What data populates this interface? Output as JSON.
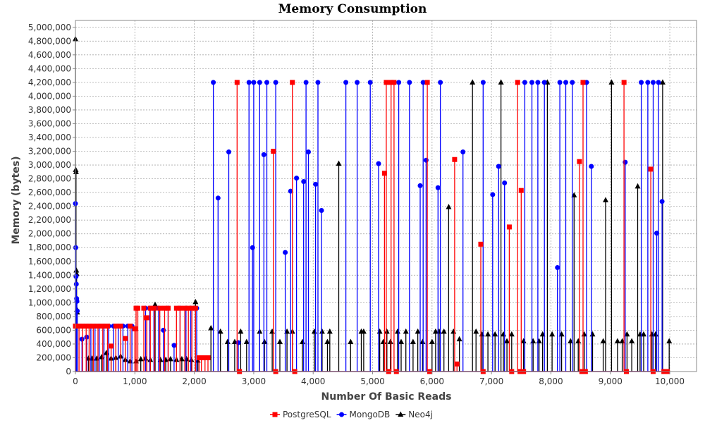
{
  "chart_data": {
    "type": "line",
    "title": "Memory Consumption",
    "xlabel": "Number Of Basic Reads",
    "ylabel": "Memory (bytes)",
    "xlim": [
      0,
      10450
    ],
    "ylim": [
      0,
      5100000
    ],
    "x_ticks": [
      0,
      1000,
      2000,
      3000,
      4000,
      5000,
      6000,
      7000,
      8000,
      9000,
      10000
    ],
    "x_tick_labels": [
      "0",
      "1,000",
      "2,000",
      "3,000",
      "4,000",
      "5,000",
      "6,000",
      "7,000",
      "8,000",
      "9,000",
      "10,000"
    ],
    "y_ticks": [
      0,
      200000,
      400000,
      600000,
      800000,
      1000000,
      1200000,
      1400000,
      1600000,
      1800000,
      2000000,
      2200000,
      2400000,
      2600000,
      2800000,
      3000000,
      3200000,
      3400000,
      3600000,
      3800000,
      4000000,
      4200000,
      4400000,
      4600000,
      4800000,
      5000000
    ],
    "y_tick_labels": [
      "0",
      "200,000",
      "400,000",
      "600,000",
      "800,000",
      "1,000,000",
      "1,200,000",
      "1,400,000",
      "1,600,000",
      "1,800,000",
      "2,000,000",
      "2,200,000",
      "2,400,000",
      "2,600,000",
      "2,800,000",
      "3,000,000",
      "3,200,000",
      "3,400,000",
      "3,600,000",
      "3,800,000",
      "4,000,000",
      "4,200,000",
      "4,400,000",
      "4,600,000",
      "4,800,000",
      "5,000,000"
    ],
    "grid": true,
    "legend_position": "bottom-center",
    "series": [
      {
        "name": "PostgreSQL",
        "color": "#ff0000",
        "marker": "square",
        "x": [
          0,
          60,
          120,
          180,
          230,
          300,
          380,
          460,
          540,
          600,
          680,
          760,
          840,
          920,
          1000,
          1020,
          1050,
          1150,
          1200,
          1260,
          1330,
          1420,
          1500,
          1560,
          1700,
          1760,
          1840,
          1900,
          1960,
          2020,
          2080,
          2120,
          2180,
          2230,
          2720,
          2760,
          3330,
          3370,
          3650,
          3690,
          5200,
          5230,
          5270,
          5310,
          5360,
          5400,
          5920,
          5960,
          6380,
          6420,
          6820,
          6860,
          7300,
          7340,
          7440,
          7480,
          7500,
          7540,
          8480,
          8520,
          8540,
          8580,
          9230,
          9270,
          9680,
          9720,
          9900,
          9960
        ],
        "y": [
          660000,
          660000,
          660000,
          660000,
          660000,
          660000,
          660000,
          660000,
          660000,
          370000,
          660000,
          660000,
          480000,
          660000,
          620000,
          920000,
          920000,
          920000,
          780000,
          920000,
          920000,
          920000,
          920000,
          920000,
          920000,
          920000,
          920000,
          920000,
          920000,
          920000,
          200000,
          200000,
          200000,
          200000,
          4200000,
          0,
          3200000,
          0,
          4200000,
          0,
          2880000,
          4200000,
          0,
          4200000,
          4200000,
          0,
          4200000,
          0,
          3080000,
          110000,
          1850000,
          0,
          2100000,
          0,
          4200000,
          0,
          2630000,
          0,
          3050000,
          0,
          4200000,
          0,
          4200000,
          0,
          2940000,
          0,
          0,
          0
        ]
      },
      {
        "name": "MongoDB",
        "color": "#0000ff",
        "marker": "circle",
        "x": [
          0,
          5,
          10,
          15,
          20,
          25,
          30,
          110,
          190,
          260,
          330,
          400,
          480,
          560,
          640,
          720,
          800,
          880,
          950,
          1180,
          1250,
          1320,
          1400,
          1480,
          1560,
          1660,
          1760,
          1860,
          1940,
          2040,
          2320,
          2400,
          2580,
          2740,
          2920,
          2980,
          3000,
          3100,
          3170,
          3220,
          3370,
          3530,
          3620,
          3720,
          3840,
          3880,
          3920,
          4040,
          4080,
          4140,
          4550,
          4740,
          4960,
          5100,
          5440,
          5620,
          5800,
          5850,
          5900,
          6100,
          6140,
          6520,
          6860,
          7020,
          7120,
          7220,
          7560,
          7680,
          7780,
          7890,
          8110,
          8150,
          8250,
          8360,
          8600,
          8680,
          9250,
          9520,
          9630,
          9720,
          9780,
          9810,
          9870
        ],
        "y": [
          2440000,
          1800000,
          1380000,
          1270000,
          1060000,
          1020000,
          880000,
          470000,
          500000,
          660000,
          660000,
          660000,
          660000,
          660000,
          660000,
          660000,
          660000,
          660000,
          660000,
          920000,
          920000,
          920000,
          920000,
          600000,
          920000,
          380000,
          920000,
          920000,
          920000,
          920000,
          4200000,
          2520000,
          3190000,
          420000,
          4200000,
          1800000,
          4200000,
          4200000,
          3150000,
          4200000,
          4200000,
          1730000,
          2620000,
          2810000,
          2760000,
          4200000,
          3190000,
          2720000,
          4200000,
          2340000,
          4200000,
          4200000,
          4200000,
          3020000,
          4200000,
          4200000,
          2700000,
          4200000,
          3070000,
          2670000,
          4200000,
          3190000,
          4200000,
          2570000,
          2980000,
          2740000,
          4200000,
          4200000,
          4200000,
          4200000,
          1510000,
          4200000,
          4200000,
          4200000,
          4200000,
          2980000,
          3040000,
          4200000,
          4200000,
          4200000,
          2010000,
          4200000,
          2470000
        ]
      },
      {
        "name": "Neo4j",
        "color": "#000000",
        "marker": "triangle",
        "x": [
          0,
          5,
          10,
          15,
          20,
          25,
          30,
          220,
          280,
          360,
          440,
          520,
          600,
          680,
          760,
          840,
          920,
          1020,
          1100,
          1180,
          1260,
          1340,
          1430,
          1520,
          1600,
          1700,
          1790,
          1870,
          1950,
          2020,
          2060,
          2280,
          2440,
          2560,
          2680,
          2780,
          2880,
          3100,
          3180,
          3310,
          3440,
          3560,
          3650,
          3820,
          4020,
          4150,
          4240,
          4280,
          4430,
          4630,
          4810,
          4850,
          5120,
          5180,
          5240,
          5300,
          5420,
          5480,
          5560,
          5680,
          5760,
          5840,
          6000,
          6060,
          6120,
          6200,
          6280,
          6360,
          6460,
          6680,
          6740,
          6840,
          6940,
          7060,
          7160,
          7200,
          7260,
          7340,
          7540,
          7700,
          7800,
          7860,
          7940,
          8020,
          8180,
          8330,
          8390,
          8460,
          8560,
          8700,
          8880,
          8920,
          9020,
          9120,
          9200,
          9280,
          9360,
          9460,
          9500,
          9560,
          9700,
          9760,
          9880,
          9990
        ],
        "y": [
          4830000,
          2930000,
          2900000,
          1470000,
          1420000,
          900000,
          860000,
          190000,
          190000,
          190000,
          210000,
          270000,
          190000,
          200000,
          220000,
          170000,
          150000,
          150000,
          180000,
          190000,
          170000,
          970000,
          170000,
          170000,
          180000,
          170000,
          180000,
          180000,
          170000,
          1010000,
          160000,
          630000,
          580000,
          430000,
          430000,
          580000,
          430000,
          580000,
          430000,
          580000,
          430000,
          580000,
          580000,
          430000,
          580000,
          580000,
          430000,
          580000,
          3020000,
          430000,
          580000,
          580000,
          580000,
          430000,
          580000,
          430000,
          580000,
          430000,
          580000,
          430000,
          580000,
          430000,
          430000,
          580000,
          580000,
          580000,
          2390000,
          580000,
          470000,
          4200000,
          580000,
          540000,
          540000,
          540000,
          4200000,
          540000,
          440000,
          540000,
          440000,
          440000,
          440000,
          540000,
          4200000,
          540000,
          540000,
          440000,
          2560000,
          440000,
          540000,
          540000,
          440000,
          2490000,
          4200000,
          440000,
          440000,
          540000,
          440000,
          2690000,
          540000,
          540000,
          540000,
          540000,
          4200000,
          440000
        ]
      }
    ]
  }
}
